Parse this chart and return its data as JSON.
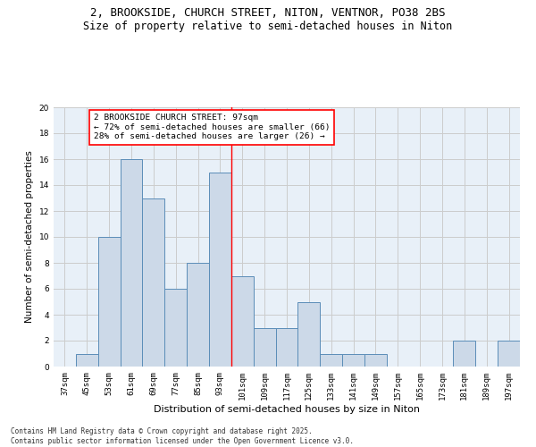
{
  "title_line1": "2, BROOKSIDE, CHURCH STREET, NITON, VENTNOR, PO38 2BS",
  "title_line2": "Size of property relative to semi-detached houses in Niton",
  "xlabel": "Distribution of semi-detached houses by size in Niton",
  "ylabel": "Number of semi-detached properties",
  "categories": [
    "37sqm",
    "45sqm",
    "53sqm",
    "61sqm",
    "69sqm",
    "77sqm",
    "85sqm",
    "93sqm",
    "101sqm",
    "109sqm",
    "117sqm",
    "125sqm",
    "133sqm",
    "141sqm",
    "149sqm",
    "157sqm",
    "165sqm",
    "173sqm",
    "181sqm",
    "189sqm",
    "197sqm"
  ],
  "values": [
    0,
    1,
    10,
    16,
    13,
    6,
    8,
    15,
    7,
    3,
    3,
    5,
    1,
    1,
    1,
    0,
    0,
    0,
    2,
    0,
    2
  ],
  "bar_color": "#ccd9e8",
  "bar_edge_color": "#5b8db8",
  "grid_color": "#cccccc",
  "vline_x": 7.5,
  "vline_color": "red",
  "annotation_text": "2 BROOKSIDE CHURCH STREET: 97sqm\n← 72% of semi-detached houses are smaller (66)\n28% of semi-detached houses are larger (26) →",
  "annotation_box_color": "white",
  "annotation_box_edge": "red",
  "footer_text": "Contains HM Land Registry data © Crown copyright and database right 2025.\nContains public sector information licensed under the Open Government Licence v3.0.",
  "ylim": [
    0,
    20
  ],
  "yticks": [
    0,
    2,
    4,
    6,
    8,
    10,
    12,
    14,
    16,
    18,
    20
  ],
  "background_color": "#e8f0f8",
  "title_fontsize": 9,
  "subtitle_fontsize": 8.5,
  "tick_fontsize": 6.5,
  "ylabel_fontsize": 7.5,
  "xlabel_fontsize": 8,
  "annotation_fontsize": 6.8,
  "footer_fontsize": 5.5
}
